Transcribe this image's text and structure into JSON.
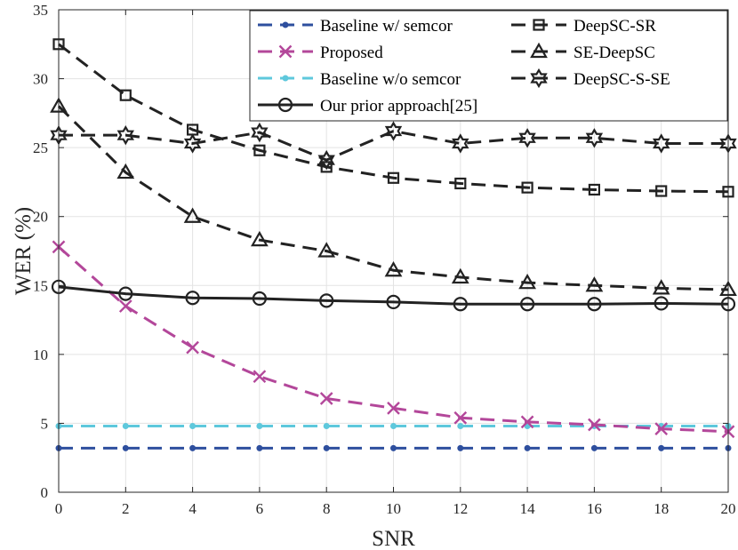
{
  "chart_data": {
    "type": "line",
    "xlabel": "SNR",
    "ylabel": "WER (%)",
    "xlim": [
      0,
      20
    ],
    "ylim": [
      0,
      35
    ],
    "xticks": [
      0,
      2,
      4,
      6,
      8,
      10,
      12,
      14,
      16,
      18,
      20
    ],
    "yticks": [
      0,
      5,
      10,
      15,
      20,
      25,
      30,
      35
    ],
    "grid": true,
    "legend_position": "top-right",
    "x": [
      0,
      2,
      4,
      6,
      8,
      10,
      12,
      14,
      16,
      18,
      20
    ],
    "series": [
      {
        "name": "Baseline w/ semcor",
        "color": "#2e4f9e",
        "dash": "dashed",
        "marker": "dot",
        "values": [
          3.2,
          3.2,
          3.2,
          3.2,
          3.2,
          3.2,
          3.2,
          3.2,
          3.2,
          3.2,
          3.2
        ]
      },
      {
        "name": "Proposed",
        "color": "#b3479a",
        "dash": "dashed",
        "marker": "x",
        "values": [
          17.8,
          13.5,
          10.5,
          8.4,
          6.8,
          6.1,
          5.4,
          5.1,
          4.9,
          4.6,
          4.4
        ]
      },
      {
        "name": "Baseline w/o semcor",
        "color": "#5ec8dc",
        "dash": "dashed",
        "marker": "dot",
        "values": [
          4.8,
          4.8,
          4.8,
          4.8,
          4.8,
          4.8,
          4.8,
          4.8,
          4.8,
          4.8,
          4.8
        ]
      },
      {
        "name": "Our prior approach[25]",
        "color": "#222222",
        "dash": "solid",
        "marker": "circle",
        "values": [
          14.9,
          14.4,
          14.1,
          14.05,
          13.9,
          13.8,
          13.65,
          13.65,
          13.65,
          13.7,
          13.65
        ]
      },
      {
        "name": "DeepSC-SR",
        "color": "#222222",
        "dash": "dashed",
        "marker": "square",
        "values": [
          32.5,
          28.8,
          26.3,
          24.8,
          23.6,
          22.8,
          22.4,
          22.1,
          21.95,
          21.85,
          21.8
        ]
      },
      {
        "name": "SE-DeepSC",
        "color": "#222222",
        "dash": "dashed",
        "marker": "triangle",
        "values": [
          28.0,
          23.2,
          20.0,
          18.3,
          17.5,
          16.1,
          15.6,
          15.2,
          15.0,
          14.8,
          14.7
        ]
      },
      {
        "name": "DeepSC-S-SE",
        "color": "#222222",
        "dash": "dashed",
        "marker": "hexagram",
        "values": [
          25.9,
          25.9,
          25.3,
          26.1,
          24.1,
          26.2,
          25.3,
          25.7,
          25.7,
          25.3,
          25.3
        ]
      }
    ]
  }
}
